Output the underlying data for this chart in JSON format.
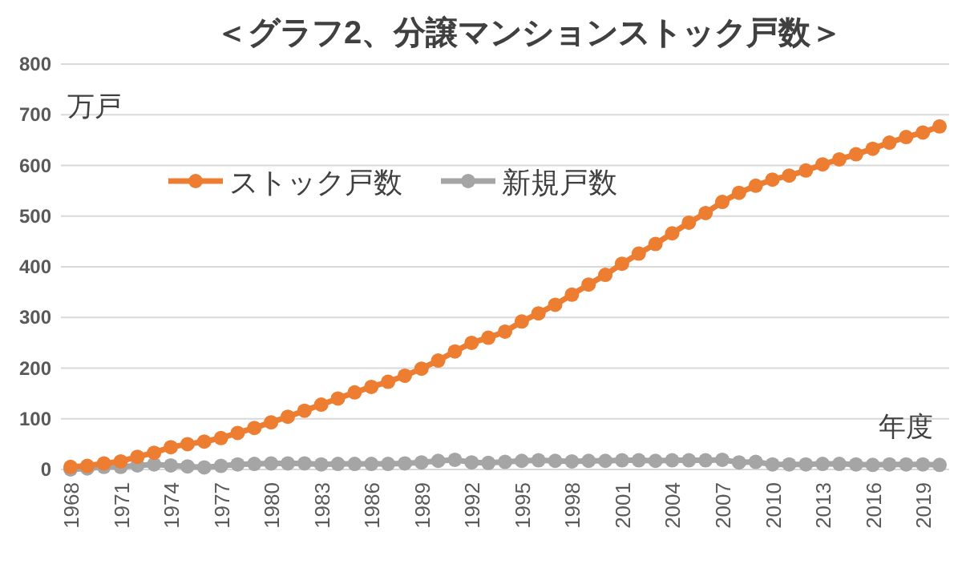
{
  "chart_data": {
    "type": "line",
    "title": "＜グラフ2、分譲マンションストック戸数＞",
    "xlabel": "年度",
    "ylabel": "万戸",
    "categories": [
      "1968",
      null,
      null,
      "1971",
      null,
      null,
      "1974",
      null,
      null,
      "1977",
      null,
      null,
      "1980",
      null,
      null,
      "1983",
      null,
      null,
      "1986",
      null,
      null,
      "1989",
      null,
      null,
      "1992",
      null,
      null,
      "1995",
      null,
      null,
      "1998",
      null,
      null,
      "2001",
      null,
      null,
      "2004",
      null,
      null,
      "2007",
      null,
      null,
      "2010",
      null,
      null,
      "2013",
      null,
      null,
      "2016",
      null,
      null,
      "2019",
      null
    ],
    "series": [
      {
        "name": "ストック戸数",
        "color": "#ed7d31",
        "values": [
          5,
          7,
          12,
          16,
          25,
          33,
          44,
          50,
          55,
          62,
          72,
          82,
          93,
          104,
          116,
          128,
          140,
          152,
          163,
          173,
          185,
          199,
          215,
          233,
          250,
          260,
          272,
          292,
          308,
          325,
          345,
          365,
          384,
          406,
          426,
          445,
          466,
          487,
          506,
          528,
          546,
          560,
          572,
          580,
          590,
          602,
          612,
          622,
          633,
          645,
          656,
          665,
          677
        ]
      },
      {
        "name": "新規戸数",
        "color": "#a5a5a5",
        "values": [
          0,
          2,
          5,
          5,
          8,
          10,
          8,
          6,
          4,
          7,
          10,
          11,
          12,
          12,
          12,
          10,
          11,
          11,
          11,
          11,
          12,
          14,
          17,
          19,
          14,
          13,
          15,
          17,
          18,
          17,
          16,
          17,
          17,
          18,
          18,
          17,
          18,
          18,
          18,
          19,
          14,
          15,
          10,
          10,
          10,
          11,
          11,
          10,
          9,
          10,
          10,
          10,
          9
        ]
      }
    ],
    "ylim": [
      0,
      800
    ],
    "yticks": [
      0,
      100,
      200,
      300,
      400,
      500,
      600,
      700,
      800
    ],
    "grid": "y",
    "legend": "top left",
    "marker": "circle",
    "line_style": "solid"
  }
}
